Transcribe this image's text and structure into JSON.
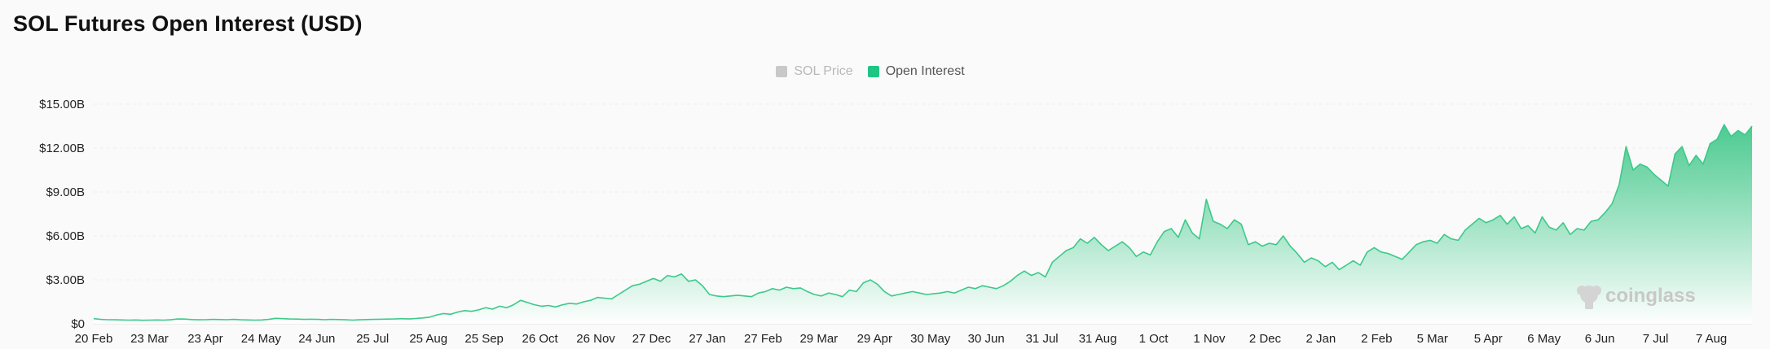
{
  "title": "SOL Futures Open Interest (USD)",
  "legend": [
    {
      "label": "SOL Price",
      "color": "#c8c8c8",
      "active": false
    },
    {
      "label": "Open Interest",
      "color": "#1ec583",
      "active": true
    }
  ],
  "watermark": "coinglass",
  "colors": {
    "line": "#3cc98a",
    "fill_top": "#2ec27e",
    "fill_bottom": "#ffffff",
    "grid": "#ececec",
    "axis": "#cccccc"
  },
  "chart_data": {
    "type": "area",
    "title": "SOL Futures Open Interest (USD)",
    "xlabel": "",
    "ylabel": "",
    "ylim": [
      0,
      15000000000
    ],
    "grid": true,
    "legend_position": "top-center",
    "y_ticks": [
      {
        "value": 0,
        "label": "$0"
      },
      {
        "value": 3000000000,
        "label": "$3.00B"
      },
      {
        "value": 6000000000,
        "label": "$6.00B"
      },
      {
        "value": 9000000000,
        "label": "$9.00B"
      },
      {
        "value": 12000000000,
        "label": "$12.00B"
      },
      {
        "value": 15000000000,
        "label": "$15.00B"
      }
    ],
    "x_tick_labels": [
      "20 Feb",
      "23 Mar",
      "23 Apr",
      "24 May",
      "24 Jun",
      "25 Jul",
      "25 Aug",
      "25 Sep",
      "26 Oct",
      "26 Nov",
      "27 Dec",
      "27 Jan",
      "27 Feb",
      "29 Mar",
      "29 Apr",
      "30 May",
      "30 Jun",
      "31 Jul",
      "31 Aug",
      "1 Oct",
      "1 Nov",
      "2 Dec",
      "2 Jan",
      "2 Feb",
      "5 Mar",
      "5 Apr",
      "6 May",
      "6 Jun",
      "7 Jul",
      "7 Aug"
    ],
    "series": [
      {
        "name": "Open Interest",
        "values": [
          0.35,
          0.3,
          0.28,
          0.27,
          0.26,
          0.25,
          0.26,
          0.24,
          0.25,
          0.26,
          0.25,
          0.27,
          0.33,
          0.32,
          0.29,
          0.27,
          0.28,
          0.3,
          0.29,
          0.28,
          0.3,
          0.27,
          0.26,
          0.25,
          0.26,
          0.3,
          0.37,
          0.35,
          0.33,
          0.32,
          0.3,
          0.31,
          0.3,
          0.28,
          0.3,
          0.29,
          0.27,
          0.25,
          0.27,
          0.29,
          0.3,
          0.31,
          0.32,
          0.33,
          0.35,
          0.33,
          0.36,
          0.4,
          0.45,
          0.6,
          0.7,
          0.65,
          0.8,
          0.9,
          0.85,
          0.95,
          1.1,
          1.0,
          1.2,
          1.1,
          1.3,
          1.6,
          1.45,
          1.3,
          1.2,
          1.25,
          1.15,
          1.3,
          1.4,
          1.35,
          1.5,
          1.6,
          1.8,
          1.75,
          1.7,
          2.0,
          2.3,
          2.6,
          2.7,
          2.9,
          3.1,
          2.9,
          3.3,
          3.2,
          3.4,
          2.9,
          3.0,
          2.6,
          2.0,
          1.9,
          1.85,
          1.9,
          1.95,
          1.9,
          1.85,
          2.1,
          2.2,
          2.4,
          2.3,
          2.5,
          2.4,
          2.45,
          2.2,
          2.0,
          1.9,
          2.1,
          2.0,
          1.85,
          2.3,
          2.2,
          2.8,
          3.0,
          2.7,
          2.2,
          1.9,
          2.0,
          2.1,
          2.2,
          2.1,
          2.0,
          2.05,
          2.1,
          2.2,
          2.1,
          2.3,
          2.5,
          2.4,
          2.6,
          2.5,
          2.4,
          2.6,
          2.9,
          3.3,
          3.6,
          3.3,
          3.5,
          3.2,
          4.2,
          4.6,
          5.0,
          5.2,
          5.8,
          5.5,
          5.9,
          5.4,
          5.0,
          5.3,
          5.6,
          5.2,
          4.6,
          4.9,
          4.7,
          5.6,
          6.3,
          6.5,
          5.9,
          7.1,
          6.2,
          5.8,
          8.5,
          7.0,
          6.8,
          6.5,
          7.1,
          6.8,
          5.4,
          5.6,
          5.3,
          5.5,
          5.4,
          6.0,
          5.3,
          4.8,
          4.2,
          4.5,
          4.3,
          3.9,
          4.2,
          3.7,
          4.0,
          4.3,
          4.0,
          4.9,
          5.2,
          4.9,
          4.8,
          4.6,
          4.4,
          4.9,
          5.4,
          5.6,
          5.7,
          5.5,
          6.1,
          5.8,
          5.7,
          6.4,
          6.8,
          7.2,
          6.9,
          7.1,
          7.4,
          6.8,
          7.3,
          6.5,
          6.7,
          6.2,
          7.3,
          6.6,
          6.4,
          6.9,
          6.1,
          6.5,
          6.4,
          7.0,
          7.1,
          7.6,
          8.2,
          9.5,
          12.1,
          10.5,
          10.9,
          10.7,
          10.2,
          9.8,
          9.4,
          11.6,
          12.1,
          10.8,
          11.5,
          10.9,
          12.3,
          12.6,
          13.6,
          12.8,
          13.2,
          12.9,
          13.5
        ]
      }
    ],
    "value_unit": "billion USD"
  }
}
